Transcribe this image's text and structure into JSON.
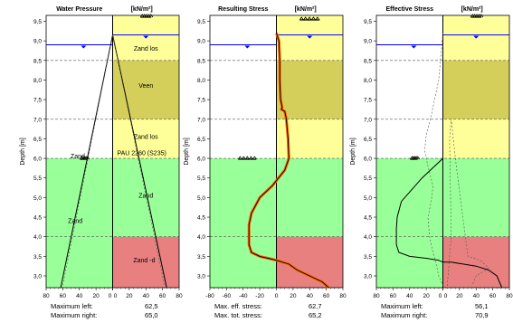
{
  "depth_axis": {
    "label": "Depth [m]",
    "ylim": [
      2.7,
      9.65
    ],
    "ticks": [
      "9,5",
      "9,0",
      "8,5",
      "8,0",
      "7,5",
      "7,0",
      "6,5",
      "6,0",
      "5,5",
      "5,0",
      "4,5",
      "4,0",
      "3,5",
      "3,0"
    ]
  },
  "water_level": 9.15,
  "excavation_level": 8.9,
  "layer_lines": [
    8.5,
    7.0,
    4.0
  ],
  "colors": {
    "zand_los": "#ffff99",
    "veen": "#d4cf5a",
    "zand_green": "#99ff99",
    "zand_d": "#e88080",
    "water": "#0000ff",
    "resulting_stress": "#ff6600"
  },
  "panels": [
    {
      "title_left": "Water Pressure",
      "title_unit": "[kN/m²]",
      "xlim": [
        -80,
        80
      ],
      "x_ticks": [
        "80",
        "60",
        "40",
        "20",
        "0",
        "0",
        "20",
        "40",
        "60",
        "80"
      ],
      "labels": [
        {
          "text": "Zand los",
          "x": 40,
          "depth": 8.75
        },
        {
          "text": "Veen",
          "x": 40,
          "depth": 7.8
        },
        {
          "text": "Zand los",
          "x": 40,
          "depth": 6.5
        },
        {
          "text": "PAU 2260 (S235)",
          "x": 35,
          "depth": 6.08
        },
        {
          "text": "Zand",
          "x": -42,
          "depth": 6.0
        },
        {
          "text": "Zand",
          "x": 40,
          "depth": 5.0
        },
        {
          "text": "Zand",
          "x": -45,
          "depth": 4.35
        },
        {
          "text": "Zand -d",
          "x": 38,
          "depth": 3.35
        }
      ],
      "footer_rows": [
        {
          "label": "Maximum left:",
          "value": "62,5"
        },
        {
          "label": "Maximum right:",
          "value": "65,0"
        }
      ]
    },
    {
      "title_left": "Resulting Stress",
      "title_unit": "[kN/m²]",
      "xlim": [
        -80,
        80
      ],
      "x_ticks": [
        "-80",
        "-60",
        "-40",
        "-20",
        "0",
        "20",
        "40",
        "60",
        "80"
      ],
      "labels": [],
      "footer_rows": [
        {
          "label": "Max. eff. stress:",
          "value": "62,7"
        },
        {
          "label": "Max. tot. stress:",
          "value": "65,2"
        }
      ]
    },
    {
      "title_left": "Effective Stress",
      "title_unit": "[kN/m²]",
      "xlim": [
        -80,
        80
      ],
      "x_ticks": [
        "80",
        "60",
        "40",
        "20",
        "0",
        "0",
        "20",
        "40",
        "60",
        "80"
      ],
      "labels": [],
      "footer_rows": [
        {
          "label": "Maximum left:",
          "value": "56,1"
        },
        {
          "label": "Maximum right:",
          "value": "70,9"
        }
      ]
    }
  ],
  "chart_data": [
    {
      "type": "line",
      "title": "Water Pressure [kN/m²]",
      "ylabel": "Depth [m]",
      "ylim": [
        2.7,
        9.65
      ],
      "xlim": [
        -80,
        80
      ],
      "series": [
        {
          "x": [
            0,
            -62.5
          ],
          "y": [
            9.15,
            2.7
          ]
        },
        {
          "x": [
            0,
            65.0
          ],
          "y": [
            9.15,
            2.7
          ]
        }
      ]
    },
    {
      "type": "line",
      "title": "Resulting Stress [kN/m²]",
      "ylabel": "Depth [m]",
      "ylim": [
        2.7,
        9.65
      ],
      "xlim": [
        -80,
        80
      ],
      "series": [
        {
          "x": [
            0,
            3,
            4,
            4,
            5,
            7,
            6,
            10,
            12,
            14,
            15,
            10,
            -5,
            -20,
            -30,
            -33,
            -33,
            -30,
            -20,
            -10,
            0,
            15,
            25,
            40,
            55,
            63
          ],
          "y": [
            9.2,
            9.0,
            8.5,
            8.0,
            7.5,
            7.3,
            7.25,
            7.2,
            7.0,
            6.5,
            6.0,
            5.7,
            5.3,
            5.0,
            4.6,
            4.3,
            3.8,
            3.6,
            3.5,
            3.45,
            3.4,
            3.3,
            3.15,
            3.0,
            2.85,
            2.7
          ]
        }
      ]
    },
    {
      "type": "line",
      "title": "Effective Stress [kN/m²]",
      "ylabel": "Depth [m]",
      "ylim": [
        2.7,
        9.65
      ],
      "xlim": [
        -80,
        80
      ],
      "series": [
        {
          "x": [
            0,
            0,
            -25,
            -50,
            -55,
            -56,
            -56,
            -53,
            -40,
            -20,
            -5,
            0,
            0,
            0,
            0,
            10,
            25,
            40,
            55,
            65,
            71
          ],
          "y": [
            9.2,
            6.0,
            5.5,
            4.9,
            4.5,
            4.2,
            3.8,
            3.6,
            3.5,
            3.45,
            3.4,
            3.35,
            6.0,
            3.4,
            3.4,
            3.4,
            3.35,
            3.3,
            3.2,
            3.0,
            2.7
          ]
        }
      ]
    }
  ]
}
